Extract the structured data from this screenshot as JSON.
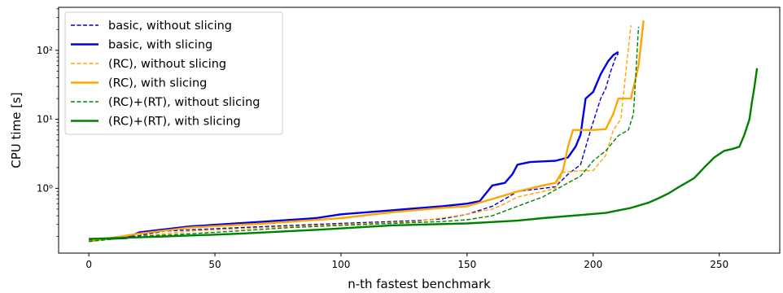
{
  "chart_data": {
    "type": "line",
    "xlabel": "n-th fastest benchmark",
    "ylabel": "CPU time [s]",
    "xscale": "linear",
    "yscale": "log",
    "xlim": [
      -12,
      274
    ],
    "ylim": [
      0.115,
      420
    ],
    "grid": false,
    "legend_position": "top-left",
    "xticks": [
      0,
      50,
      100,
      150,
      200,
      250
    ],
    "yticks": [
      {
        "value": 1,
        "label": "10⁰"
      },
      {
        "value": 10,
        "label": "10¹"
      },
      {
        "value": 100,
        "label": "10²"
      }
    ],
    "series": [
      {
        "name": "basic, without slicing",
        "color": "#0000cc",
        "style": "dashed",
        "points": [
          [
            0,
            0.17
          ],
          [
            18,
            0.2
          ],
          [
            30,
            0.24
          ],
          [
            60,
            0.27
          ],
          [
            100,
            0.31
          ],
          [
            130,
            0.34
          ],
          [
            140,
            0.36
          ],
          [
            150,
            0.42
          ],
          [
            160,
            0.55
          ],
          [
            165,
            0.7
          ],
          [
            170,
            0.9
          ],
          [
            180,
            1.0
          ],
          [
            185,
            1.05
          ],
          [
            190,
            1.6
          ],
          [
            195,
            2.2
          ],
          [
            199,
            7
          ],
          [
            203,
            20
          ],
          [
            205,
            28
          ],
          [
            207,
            50
          ],
          [
            209,
            80
          ],
          [
            210,
            90
          ]
        ]
      },
      {
        "name": "basic, with slicing",
        "color": "#0000e6",
        "style": "solid",
        "points": [
          [
            0,
            0.18
          ],
          [
            15,
            0.19
          ],
          [
            20,
            0.23
          ],
          [
            40,
            0.28
          ],
          [
            70,
            0.33
          ],
          [
            90,
            0.37
          ],
          [
            100,
            0.42
          ],
          [
            120,
            0.48
          ],
          [
            140,
            0.55
          ],
          [
            150,
            0.6
          ],
          [
            155,
            0.65
          ],
          [
            160,
            1.1
          ],
          [
            165,
            1.2
          ],
          [
            168,
            1.6
          ],
          [
            170,
            2.2
          ],
          [
            175,
            2.4
          ],
          [
            185,
            2.5
          ],
          [
            190,
            2.8
          ],
          [
            193,
            4
          ],
          [
            195,
            6
          ],
          [
            197,
            20
          ],
          [
            200,
            25
          ],
          [
            203,
            45
          ],
          [
            206,
            70
          ],
          [
            208,
            85
          ],
          [
            210,
            95
          ]
        ]
      },
      {
        "name": "(RC), without slicing",
        "color": "#ffa500",
        "style": "dashed",
        "points": [
          [
            0,
            0.17
          ],
          [
            20,
            0.2
          ],
          [
            40,
            0.24
          ],
          [
            70,
            0.27
          ],
          [
            100,
            0.3
          ],
          [
            130,
            0.33
          ],
          [
            150,
            0.42
          ],
          [
            160,
            0.5
          ],
          [
            165,
            0.6
          ],
          [
            170,
            0.75
          ],
          [
            180,
            0.9
          ],
          [
            185,
            1.0
          ],
          [
            188,
            1.7
          ],
          [
            195,
            1.8
          ],
          [
            200,
            1.8
          ],
          [
            205,
            3
          ],
          [
            208,
            7
          ],
          [
            211,
            10
          ],
          [
            213,
            50
          ],
          [
            215,
            230
          ]
        ]
      },
      {
        "name": "(RC), with slicing",
        "color": "#ffa500",
        "style": "solid",
        "points": [
          [
            0,
            0.17
          ],
          [
            20,
            0.22
          ],
          [
            40,
            0.27
          ],
          [
            70,
            0.31
          ],
          [
            100,
            0.37
          ],
          [
            120,
            0.45
          ],
          [
            140,
            0.52
          ],
          [
            150,
            0.55
          ],
          [
            160,
            0.7
          ],
          [
            170,
            0.9
          ],
          [
            180,
            1.1
          ],
          [
            185,
            1.2
          ],
          [
            188,
            1.8
          ],
          [
            190,
            4
          ],
          [
            192,
            7
          ],
          [
            200,
            7
          ],
          [
            205,
            7.2
          ],
          [
            208,
            12
          ],
          [
            210,
            20
          ],
          [
            215,
            20
          ],
          [
            218,
            60
          ],
          [
            220,
            270
          ]
        ]
      },
      {
        "name": "(RC)+(RT), without slicing",
        "color": "#008000",
        "style": "dashed",
        "points": [
          [
            0,
            0.17
          ],
          [
            20,
            0.2
          ],
          [
            50,
            0.23
          ],
          [
            80,
            0.27
          ],
          [
            100,
            0.29
          ],
          [
            120,
            0.31
          ],
          [
            140,
            0.33
          ],
          [
            150,
            0.35
          ],
          [
            160,
            0.4
          ],
          [
            170,
            0.55
          ],
          [
            180,
            0.75
          ],
          [
            190,
            1.2
          ],
          [
            195,
            1.5
          ],
          [
            200,
            2.5
          ],
          [
            205,
            3.5
          ],
          [
            210,
            5.8
          ],
          [
            214,
            7
          ],
          [
            216,
            12
          ],
          [
            217,
            50
          ],
          [
            218,
            220
          ]
        ]
      },
      {
        "name": "(RC)+(RT), with slicing",
        "color": "#008000",
        "style": "solid",
        "points": [
          [
            0,
            0.185
          ],
          [
            30,
            0.2
          ],
          [
            60,
            0.22
          ],
          [
            90,
            0.25
          ],
          [
            120,
            0.29
          ],
          [
            150,
            0.31
          ],
          [
            170,
            0.34
          ],
          [
            180,
            0.37
          ],
          [
            195,
            0.41
          ],
          [
            205,
            0.44
          ],
          [
            215,
            0.52
          ],
          [
            222,
            0.62
          ],
          [
            226,
            0.72
          ],
          [
            230,
            0.85
          ],
          [
            235,
            1.1
          ],
          [
            240,
            1.4
          ],
          [
            244,
            2
          ],
          [
            248,
            2.8
          ],
          [
            252,
            3.5
          ],
          [
            255,
            3.7
          ],
          [
            258,
            4
          ],
          [
            260,
            6
          ],
          [
            262,
            10
          ],
          [
            263,
            18
          ],
          [
            264,
            30
          ],
          [
            265,
            55
          ]
        ]
      }
    ]
  }
}
